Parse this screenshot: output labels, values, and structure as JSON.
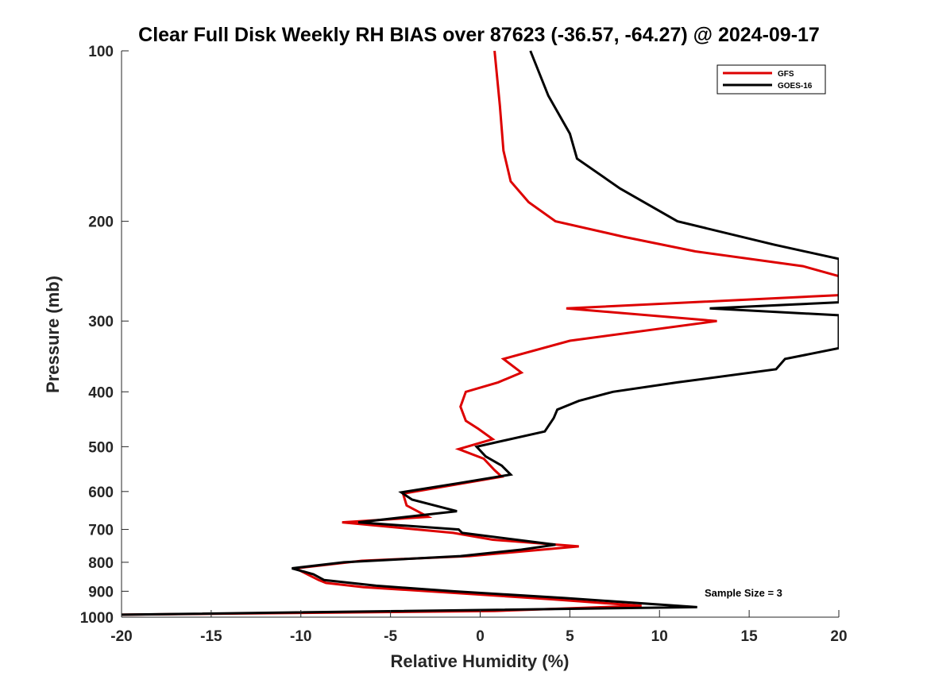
{
  "chart_data": {
    "type": "line",
    "title": "Clear Full Disk Weekly RH BIAS over 87623 (-36.57, -64.27) @ 2024-09-17",
    "xlabel": "Relative Humidity (%)",
    "ylabel": "Pressure (mb)",
    "xlim": [
      -20,
      20
    ],
    "ylim": [
      100,
      1000
    ],
    "yscale": "log",
    "yreversed": true,
    "xticks": [
      -20,
      -15,
      -10,
      -5,
      0,
      5,
      10,
      15,
      20
    ],
    "yticks": [
      100,
      200,
      300,
      400,
      500,
      600,
      700,
      800,
      900,
      1000
    ],
    "grid": false,
    "legend_position": "top-right",
    "annotation": "Sample Size = 3",
    "series": [
      {
        "name": "GFS",
        "color": "#dd0000",
        "points": [
          [
            0.8,
            100
          ],
          [
            1.1,
            125
          ],
          [
            1.3,
            150
          ],
          [
            1.7,
            170
          ],
          [
            2.7,
            185
          ],
          [
            4.2,
            200
          ],
          [
            8.0,
            213
          ],
          [
            12.0,
            226
          ],
          [
            18.0,
            240
          ],
          [
            20,
            250
          ],
          [
            20,
            270
          ],
          [
            4.8,
            285
          ],
          [
            13.2,
            300
          ],
          [
            5.0,
            325
          ],
          [
            1.3,
            350
          ],
          [
            2.3,
            370
          ],
          [
            1.0,
            385
          ],
          [
            -0.8,
            400
          ],
          [
            -1.1,
            425
          ],
          [
            -0.8,
            450
          ],
          [
            -0.1,
            465
          ],
          [
            0.7,
            485
          ],
          [
            -1.2,
            505
          ],
          [
            0.2,
            525
          ],
          [
            0.8,
            550
          ],
          [
            1.2,
            565
          ],
          [
            -0.9,
            580
          ],
          [
            -4.3,
            605
          ],
          [
            -4.1,
            635
          ],
          [
            -2.9,
            665
          ],
          [
            -7.7,
            680
          ],
          [
            -1.5,
            710
          ],
          [
            0.7,
            730
          ],
          [
            5.5,
            750
          ],
          [
            -0.6,
            780
          ],
          [
            -6.6,
            795
          ],
          [
            -10.3,
            820
          ],
          [
            -9.0,
            860
          ],
          [
            -8.6,
            870
          ],
          [
            -6.5,
            885
          ],
          [
            -1.0,
            908
          ],
          [
            4.0,
            930
          ],
          [
            9.0,
            955
          ],
          [
            0.8,
            975
          ],
          [
            -20,
            990
          ]
        ]
      },
      {
        "name": "GOES-16",
        "color": "#000000",
        "points": [
          [
            2.8,
            100
          ],
          [
            3.8,
            120
          ],
          [
            5.0,
            140
          ],
          [
            5.4,
            155
          ],
          [
            7.8,
            175
          ],
          [
            11.0,
            200
          ],
          [
            16.4,
            220
          ],
          [
            20,
            233
          ],
          [
            20,
            278
          ],
          [
            12.8,
            285
          ],
          [
            20,
            293
          ],
          [
            20,
            335
          ],
          [
            17.0,
            350
          ],
          [
            16.5,
            365
          ],
          [
            11.0,
            385
          ],
          [
            7.4,
            400
          ],
          [
            5.5,
            415
          ],
          [
            4.3,
            430
          ],
          [
            4.1,
            445
          ],
          [
            3.6,
            470
          ],
          [
            -0.2,
            500
          ],
          [
            0.3,
            520
          ],
          [
            1.2,
            540
          ],
          [
            1.7,
            560
          ],
          [
            -1.2,
            580
          ],
          [
            -4.4,
            602
          ],
          [
            -3.8,
            620
          ],
          [
            -1.3,
            650
          ],
          [
            -6.8,
            680
          ],
          [
            -1.2,
            700
          ],
          [
            -1.0,
            710
          ],
          [
            4.2,
            745
          ],
          [
            2.3,
            760
          ],
          [
            -1.1,
            780
          ],
          [
            -7.6,
            800
          ],
          [
            -10.5,
            820
          ],
          [
            -9.3,
            840
          ],
          [
            -8.7,
            860
          ],
          [
            -5.8,
            880
          ],
          [
            -1.5,
            900
          ],
          [
            4.7,
            925
          ],
          [
            12.1,
            960
          ],
          [
            -20,
            990
          ]
        ]
      }
    ]
  }
}
